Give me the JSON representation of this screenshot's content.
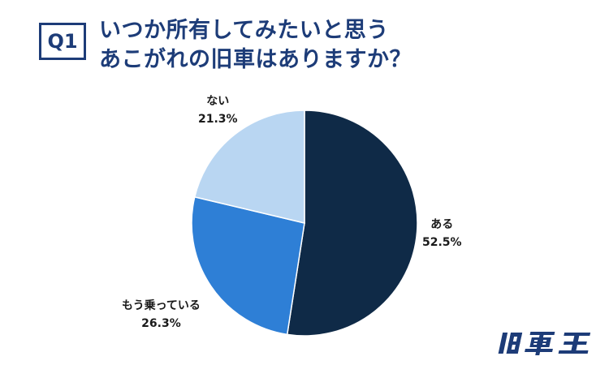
{
  "badge": "Q1",
  "title": {
    "line1": "いつか所有してみたいと思う",
    "line2": "あこがれの旧車はありますか？"
  },
  "logo_text": "旧車王",
  "colors": {
    "title": "#1d3c78",
    "aru": "#0f2a47",
    "mou": "#2e7fd6",
    "nai": "#b9d6f2"
  },
  "chart_data": {
    "type": "pie",
    "title": "いつか所有してみたいと思うあこがれの旧車はありますか？",
    "slices": [
      {
        "label": "ある",
        "value": 52.5,
        "display": "52.5%",
        "color": "#0f2a47"
      },
      {
        "label": "もう乗っている",
        "value": 26.3,
        "display": "26.3%",
        "color": "#2e7fd6"
      },
      {
        "label": "ない",
        "value": 21.3,
        "display": "21.3%",
        "color": "#b9d6f2"
      }
    ]
  }
}
